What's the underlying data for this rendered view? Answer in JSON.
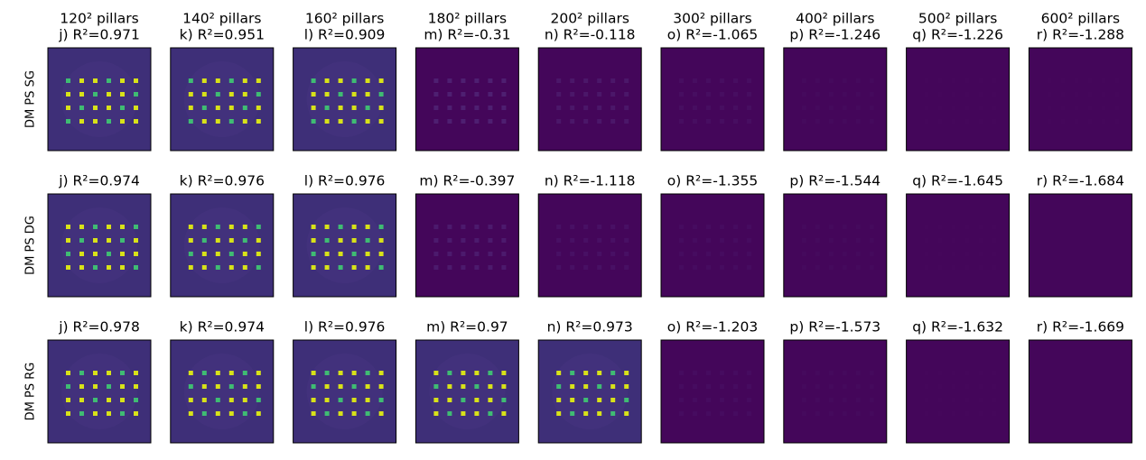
{
  "columns": [
    "120² pillars",
    "140² pillars",
    "160² pillars",
    "180² pillars",
    "200² pillars",
    "300² pillars",
    "400² pillars",
    "500² pillars",
    "600² pillars"
  ],
  "rows": [
    {
      "label": "DM PS SG",
      "panels": [
        "j) R²=0.971",
        "k) R²=0.951",
        "l) R²=0.909",
        "m) R²=-0.31",
        "n) R²=-0.118",
        "o) R²=-1.065",
        "p) R²=-1.246",
        "q) R²=-1.226",
        "r) R²=-1.288"
      ]
    },
    {
      "label": "DM PS DG",
      "panels": [
        "j) R²=0.974",
        "k) R²=0.976",
        "l) R²=0.976",
        "m) R²=-0.397",
        "n) R²=-1.118",
        "o) R²=-1.355",
        "p) R²=-1.544",
        "q) R²=-1.645",
        "r) R²=-1.684"
      ]
    },
    {
      "label": "DM PS RG",
      "panels": [
        "j) R²=0.978",
        "k) R²=0.974",
        "l) R²=0.976",
        "m) R²=0.97",
        "n) R²=0.973",
        "o) R²=-1.203",
        "p) R²=-1.573",
        "q) R²=-1.632",
        "r) R²=-1.669"
      ]
    }
  ]
}
